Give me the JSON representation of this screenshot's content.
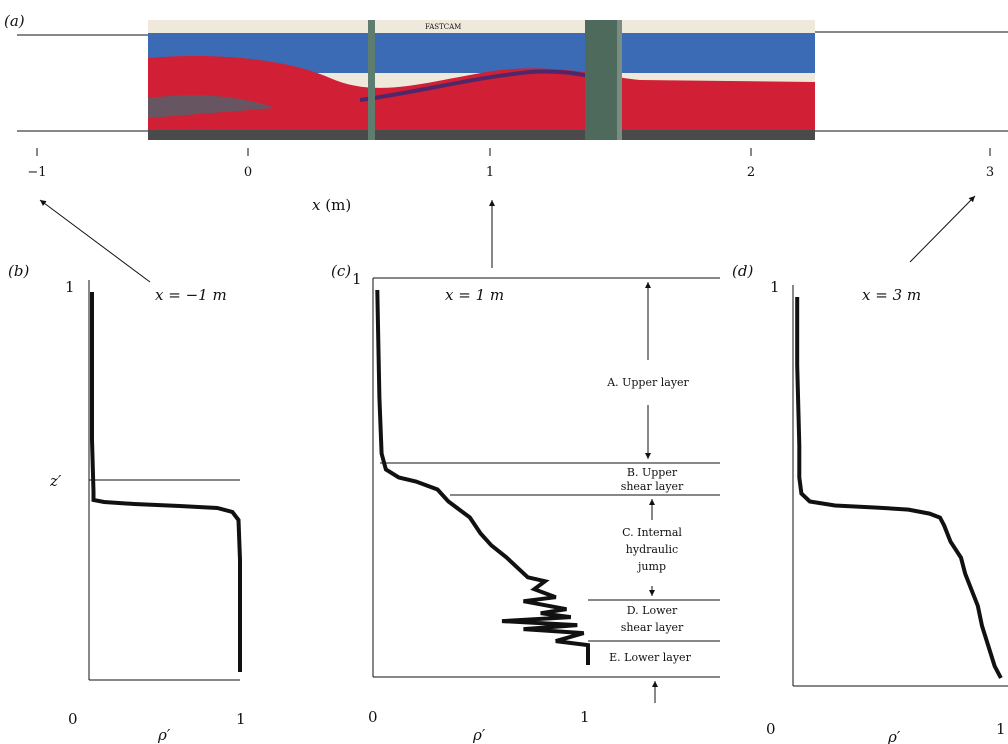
{
  "panels": {
    "a": "(a)",
    "b": "(b)",
    "c": "(c)",
    "d": "(d)"
  },
  "axis_x": {
    "label_var": "x",
    "label_unit": "(m)",
    "ticks": [
      "−1",
      "0",
      "1",
      "2",
      "3"
    ]
  },
  "profiles": {
    "b": {
      "title": "x = −1 m",
      "y_top": "1",
      "y_mid": "z′",
      "x_min": "0",
      "x_max": "1",
      "xlabel": "ρ′"
    },
    "c": {
      "title": "x = 1 m",
      "y_top": "1",
      "x_min": "0",
      "x_max": "1",
      "xlabel": "ρ′"
    },
    "d": {
      "title": "x = 3 m",
      "y_top": "1",
      "x_min": "0",
      "x_max": "1",
      "xlabel": "ρ′"
    }
  },
  "regions": {
    "a": "A. Upper layer",
    "b_line1": "B. Upper",
    "b_line2": "shear layer",
    "c_line1": "C. Internal",
    "c_line2": "hydraulic",
    "c_line3": "jump",
    "d_line1": "D. Lower",
    "d_line2": "shear layer",
    "e": "E. Lower layer"
  },
  "photo": {
    "label": "FASTCAM",
    "colors": {
      "upper": "#3b6bb5",
      "lower": "#d11f35",
      "frame": "#5f7d6e",
      "sky": "#eee9da"
    }
  },
  "chart_data": [
    {
      "type": "line",
      "title": "x = −1 m",
      "xlabel": "ρ′",
      "ylabel": "z′",
      "xlim": [
        0,
        1
      ],
      "ylim": [
        0,
        1
      ],
      "series": [
        {
          "x": [
            0.02,
            0.02,
            0.02,
            0.03,
            0.03,
            0.03,
            0.1,
            0.3,
            0.6,
            0.85,
            0.95,
            0.99,
            1.0,
            1.0,
            1.0
          ],
          "y": [
            0.97,
            0.8,
            0.6,
            0.47,
            0.46,
            0.45,
            0.445,
            0.44,
            0.435,
            0.43,
            0.42,
            0.4,
            0.3,
            0.15,
            0.02
          ]
        }
      ]
    },
    {
      "type": "line",
      "title": "x = 1 m",
      "xlabel": "ρ′",
      "ylim": [
        0,
        1
      ],
      "xlim": [
        0,
        1
      ],
      "series": [
        {
          "x": [
            0.02,
            0.03,
            0.04,
            0.06,
            0.12,
            0.2,
            0.3,
            0.35,
            0.4,
            0.45,
            0.5,
            0.55,
            0.62,
            0.68,
            0.72,
            0.8,
            0.75,
            0.85,
            0.7,
            0.9,
            0.78,
            0.92,
            0.6,
            0.95,
            0.7,
            0.98,
            0.85,
            1.0,
            1.0
          ],
          "y": [
            0.97,
            0.7,
            0.56,
            0.52,
            0.5,
            0.49,
            0.47,
            0.44,
            0.42,
            0.4,
            0.36,
            0.33,
            0.3,
            0.27,
            0.25,
            0.24,
            0.22,
            0.2,
            0.19,
            0.17,
            0.16,
            0.15,
            0.14,
            0.13,
            0.12,
            0.11,
            0.09,
            0.08,
            0.03
          ]
        }
      ]
    },
    {
      "type": "line",
      "title": "x = 3 m",
      "xlabel": "ρ′",
      "ylim": [
        0,
        1
      ],
      "xlim": [
        0,
        1
      ],
      "series": [
        {
          "x": [
            0.02,
            0.02,
            0.03,
            0.03,
            0.04,
            0.08,
            0.2,
            0.4,
            0.55,
            0.65,
            0.7,
            0.72,
            0.75,
            0.8,
            0.82,
            0.85,
            0.88,
            0.9,
            0.93,
            0.96,
            0.99
          ],
          "y": [
            0.97,
            0.8,
            0.6,
            0.52,
            0.48,
            0.46,
            0.45,
            0.445,
            0.44,
            0.43,
            0.42,
            0.4,
            0.36,
            0.32,
            0.28,
            0.24,
            0.2,
            0.15,
            0.1,
            0.05,
            0.02
          ]
        }
      ]
    }
  ]
}
